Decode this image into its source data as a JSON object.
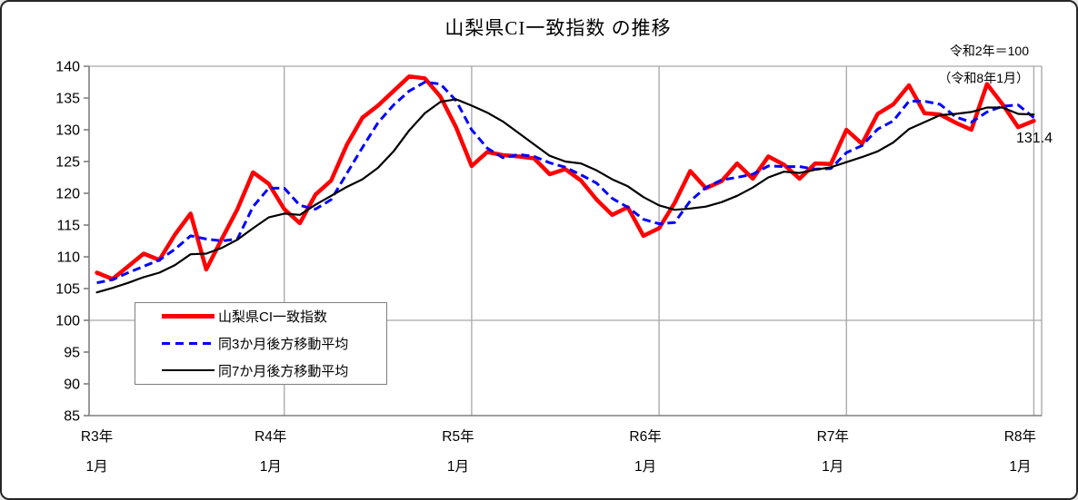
{
  "title": "山梨県CI一致指数 の推移",
  "annotation": {
    "line1": "令和2年＝100",
    "line2": "（令和8年1月）"
  },
  "end_label": "131.4",
  "legend": {
    "items": [
      {
        "label": "山梨県CI一致指数",
        "color": "#ff0000",
        "style": "solid",
        "thickness": 5
      },
      {
        "label": "同3か月後方移動平均",
        "color": "#0000ff",
        "style": "dashed",
        "thickness": 3
      },
      {
        "label": "同7か月後方移動平均",
        "color": "#000000",
        "style": "solid",
        "thickness": 2
      }
    ]
  },
  "chart_data": {
    "type": "line",
    "title": "山梨県CI一致指数 の推移",
    "note": "令和2年＝100（令和8年1月）",
    "n_points": 61,
    "x_axis": {
      "year_start_indices": [
        0,
        12,
        24,
        36,
        48,
        60
      ],
      "unit_labels": [
        {
          "year": "R3年",
          "month": "1月"
        },
        {
          "year": "R4年",
          "month": "1月"
        },
        {
          "year": "R5年",
          "month": "1月"
        },
        {
          "year": "R6年",
          "month": "1月"
        },
        {
          "year": "R7年",
          "month": "1月"
        },
        {
          "year": "R8年",
          "month": "1月"
        }
      ]
    },
    "y_axis": {
      "min": 85,
      "max": 140,
      "step": 5,
      "ticks": [
        140,
        135,
        130,
        125,
        120,
        115,
        110,
        105,
        100,
        95,
        90,
        85
      ],
      "baseline": 100,
      "grid_on": true
    },
    "series": [
      {
        "name": "山梨県CI一致指数",
        "color": "#ff0000",
        "style": "solid",
        "width": 4.5,
        "values": [
          107.5,
          106.5,
          108.5,
          110.5,
          109.5,
          113.5,
          116.8,
          108.0,
          112.8,
          117.5,
          123.3,
          121.5,
          117.5,
          115.3,
          119.8,
          122.0,
          127.6,
          131.9,
          133.8,
          136.1,
          138.4,
          138.1,
          135.2,
          130.4,
          124.3,
          126.5,
          126.0,
          125.8,
          125.5,
          123.0,
          123.8,
          122.0,
          119.0,
          116.6,
          117.8,
          113.3,
          114.5,
          118.5,
          123.5,
          120.8,
          121.9,
          124.7,
          122.3,
          125.8,
          124.5,
          122.3,
          124.7,
          124.6,
          130.0,
          127.8,
          132.5,
          134.0,
          137.0,
          132.6,
          132.4,
          131.1,
          130.0,
          137.2,
          134.0,
          130.4,
          131.4
        ]
      },
      {
        "name": "同3か月後方移動平均",
        "color": "#0000ff",
        "style": "dashed",
        "width": 3,
        "values": [
          105.9,
          106.4,
          107.5,
          108.5,
          109.5,
          111.2,
          113.3,
          112.8,
          112.5,
          112.8,
          117.9,
          120.8,
          120.8,
          118.1,
          117.5,
          119.0,
          123.1,
          127.2,
          131.1,
          133.9,
          136.1,
          137.5,
          137.2,
          134.6,
          130.0,
          127.1,
          125.6,
          126.1,
          125.8,
          124.8,
          124.1,
          122.9,
          121.6,
          119.2,
          117.8,
          115.9,
          115.2,
          115.4,
          118.8,
          120.9,
          122.1,
          122.5,
          123.0,
          124.3,
          124.2,
          124.2,
          123.8,
          123.9,
          126.4,
          127.5,
          130.1,
          131.4,
          134.5,
          134.5,
          134.0,
          132.0,
          131.2,
          132.8,
          133.7,
          133.9,
          131.9
        ]
      },
      {
        "name": "同7か月後方移動平均",
        "color": "#000000",
        "style": "solid",
        "width": 2.2,
        "values": [
          104.4,
          105.1,
          105.9,
          106.8,
          107.5,
          108.7,
          110.4,
          110.5,
          111.4,
          112.7,
          114.5,
          116.2,
          116.8,
          116.6,
          118.2,
          119.6,
          121.0,
          122.2,
          124.0,
          126.6,
          129.9,
          132.6,
          134.4,
          134.8,
          133.8,
          132.7,
          131.3,
          129.5,
          127.7,
          125.9,
          125.0,
          124.7,
          123.6,
          122.2,
          121.1,
          119.4,
          118.1,
          117.4,
          117.6,
          117.9,
          118.6,
          119.6,
          120.9,
          122.5,
          123.4,
          123.2,
          123.7,
          124.1,
          124.9,
          125.7,
          126.6,
          128.0,
          130.1,
          131.2,
          132.3,
          132.5,
          132.8,
          133.5,
          133.5,
          132.5,
          132.4
        ]
      }
    ],
    "end_label": {
      "text": "131.4",
      "series": "山梨県CI一致指数"
    },
    "colors": {
      "gridline": "#a6a6a6",
      "axis": "#7f7f7f",
      "text": "#000000"
    }
  }
}
